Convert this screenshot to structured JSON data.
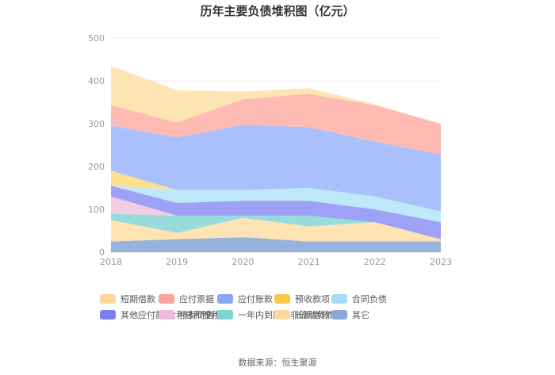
{
  "chart_data": {
    "type": "area",
    "stacked": true,
    "title": "历年主要负债堆积图（亿元）",
    "x": [
      "2018",
      "2019",
      "2020",
      "2021",
      "2022",
      "2023"
    ],
    "ylim": [
      0,
      500
    ],
    "yticks": [
      "0",
      "100",
      "200",
      "300",
      "400",
      "500"
    ],
    "grid": true,
    "legend_position": "bottom",
    "source": "数据来源：恒生聚源",
    "series": [
      {
        "name": "其它",
        "color": "#97b3dc",
        "values": [
          25,
          30,
          35,
          25,
          25,
          25
        ]
      },
      {
        "name": "长期借款",
        "color": "#ffe3b2",
        "values": [
          50,
          15,
          45,
          35,
          45,
          5
        ]
      },
      {
        "name": "一年内到期的非流动负债",
        "color": "#98dbdb",
        "values": [
          15,
          40,
          5,
          25,
          0,
          0
        ]
      },
      {
        "name": "持有待售负债",
        "color": "#f2cde6",
        "values": [
          40,
          0,
          0,
          0,
          0,
          0
        ]
      },
      {
        "name": "其他应付款(含利息和股利)",
        "color": "#9fa1f7",
        "values": [
          25,
          30,
          35,
          35,
          30,
          40
        ]
      },
      {
        "name": "合同负债",
        "color": "#bde9fb",
        "values": [
          0,
          30,
          25,
          30,
          30,
          25
        ]
      },
      {
        "name": "预收款项",
        "color": "#fde08e",
        "values": [
          35,
          0,
          0,
          0,
          0,
          0
        ]
      },
      {
        "name": "应付账款",
        "color": "#a9c0fd",
        "values": [
          105,
          123,
          152,
          142,
          128,
          133
        ]
      },
      {
        "name": "应付票据",
        "color": "#fdbbb3",
        "values": [
          48,
          35,
          60,
          78,
          85,
          72
        ]
      },
      {
        "name": "短期借款",
        "color": "#ffe4b3",
        "values": [
          92,
          75,
          18,
          13,
          2,
          0
        ]
      }
    ],
    "legend": [
      {
        "name": "短期借款",
        "color": "#fdd89c"
      },
      {
        "name": "应付票据",
        "color": "#f8a39b"
      },
      {
        "name": "应付账款",
        "color": "#89a6f7"
      },
      {
        "name": "预收款项",
        "color": "#f9c84a"
      },
      {
        "name": "合同负债",
        "color": "#a6dcf7"
      },
      {
        "name": "其他应付款(含利息和股利)",
        "color": "#7d7ff0"
      },
      {
        "name": "持有待售负债",
        "color": "#ebbbdd"
      },
      {
        "name": "一年内到期的非流动负债",
        "color": "#7fd3d3"
      },
      {
        "name": "长期借款",
        "color": "#fdd89c"
      },
      {
        "name": "其它",
        "color": "#8fa8d6"
      }
    ]
  }
}
